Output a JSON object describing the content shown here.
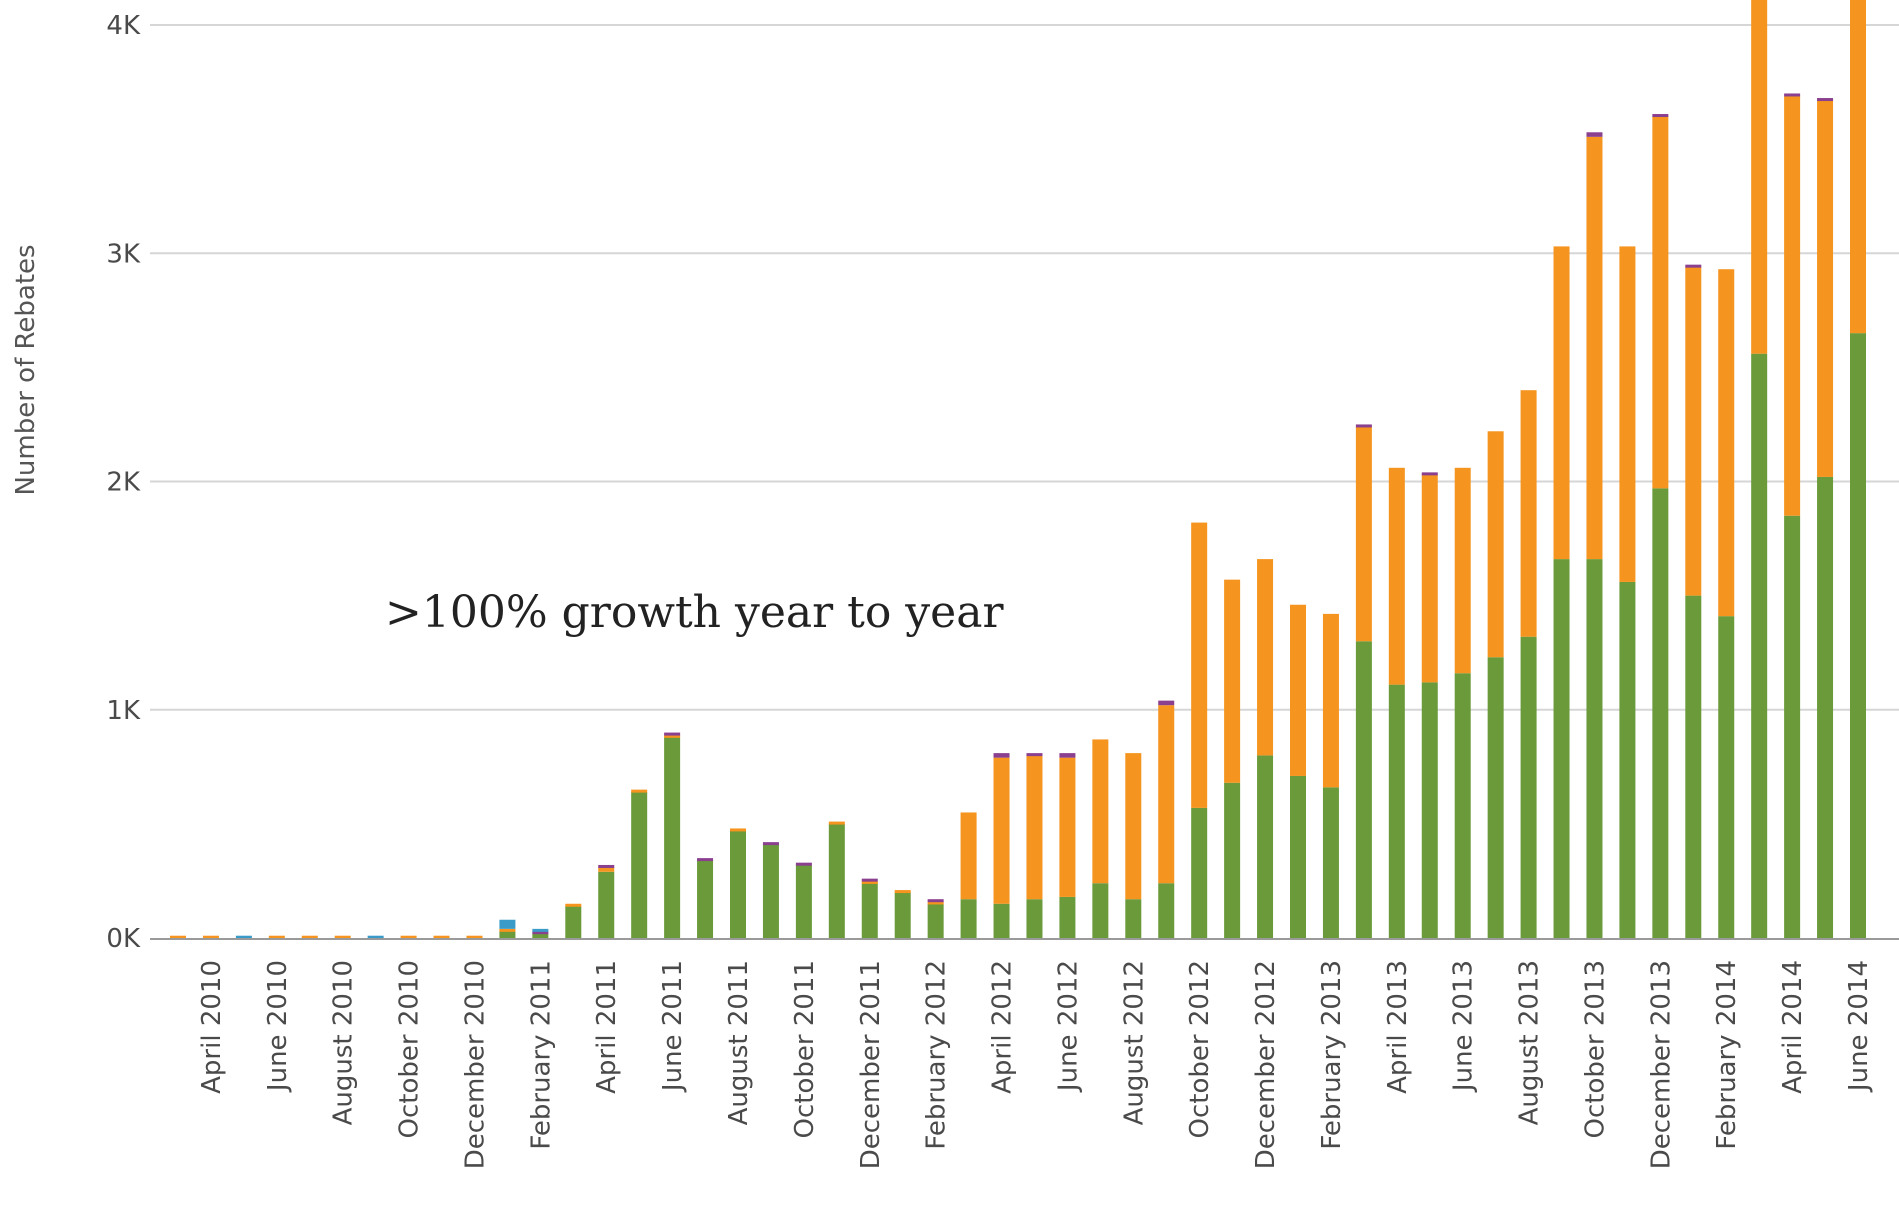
{
  "chart_data": {
    "type": "bar",
    "stacked": true,
    "ylabel": "Number of Rebates",
    "xlabel": "",
    "ylim": [
      0,
      4150
    ],
    "y_ticks": [
      {
        "value": 0,
        "label": "0K"
      },
      {
        "value": 1000,
        "label": "1K"
      },
      {
        "value": 2000,
        "label": "2K"
      },
      {
        "value": 3000,
        "label": "3K"
      },
      {
        "value": 4000,
        "label": "4K"
      }
    ],
    "grid": true,
    "annotation": ">100% growth year to year",
    "categories": [
      "March 2010",
      "April 2010",
      "May 2010",
      "June 2010",
      "July 2010",
      "August 2010",
      "September 2010",
      "October 2010",
      "November 2010",
      "December 2010",
      "January 2011",
      "February 2011",
      "March 2011",
      "April 2011",
      "May 2011",
      "June 2011",
      "July 2011",
      "August 2011",
      "September 2011",
      "October 2011",
      "November 2011",
      "December 2011",
      "January 2012",
      "February 2012",
      "March 2012",
      "April 2012",
      "May 2012",
      "June 2012",
      "July 2012",
      "August 2012",
      "September 2012",
      "October 2012",
      "November 2012",
      "December 2012",
      "January 2013",
      "February 2013",
      "March 2013",
      "April 2013",
      "May 2013",
      "June 2013",
      "July 2013",
      "August 2013",
      "September 2013",
      "October 2013",
      "November 2013",
      "December 2013",
      "January 2014",
      "February 2014",
      "March 2014",
      "April 2014",
      "May 2014",
      "June 2014"
    ],
    "tick_labels": [
      {
        "index": 1,
        "label": "April 2010"
      },
      {
        "index": 3,
        "label": "June 2010"
      },
      {
        "index": 5,
        "label": "August 2010"
      },
      {
        "index": 7,
        "label": "October 2010"
      },
      {
        "index": 9,
        "label": "December 2010"
      },
      {
        "index": 11,
        "label": "February 2011"
      },
      {
        "index": 13,
        "label": "April 2011"
      },
      {
        "index": 15,
        "label": "June 2011"
      },
      {
        "index": 17,
        "label": "August 2011"
      },
      {
        "index": 19,
        "label": "October 2011"
      },
      {
        "index": 21,
        "label": "December 2011"
      },
      {
        "index": 23,
        "label": "February 2012"
      },
      {
        "index": 25,
        "label": "April 2012"
      },
      {
        "index": 27,
        "label": "June 2012"
      },
      {
        "index": 29,
        "label": "August 2012"
      },
      {
        "index": 31,
        "label": "October 2012"
      },
      {
        "index": 33,
        "label": "December 2012"
      },
      {
        "index": 35,
        "label": "February 2013"
      },
      {
        "index": 37,
        "label": "April 2013"
      },
      {
        "index": 39,
        "label": "June 2013"
      },
      {
        "index": 41,
        "label": "August 2013"
      },
      {
        "index": 43,
        "label": "October 2013"
      },
      {
        "index": 45,
        "label": "December 2013"
      },
      {
        "index": 47,
        "label": "February 2014"
      },
      {
        "index": 49,
        "label": "April 2014"
      },
      {
        "index": 51,
        "label": "June 2014"
      }
    ],
    "series": [
      {
        "color": "#6a9a3a",
        "values": [
          0,
          0,
          0,
          0,
          0,
          0,
          0,
          0,
          0,
          0,
          30,
          20,
          140,
          290,
          640,
          880,
          340,
          470,
          410,
          320,
          500,
          240,
          200,
          150,
          170,
          150,
          170,
          180,
          240,
          170,
          240,
          570,
          680,
          800,
          710,
          660,
          1300,
          1110,
          1120,
          1160,
          1230,
          1320,
          1660,
          1660,
          1560,
          1970,
          1500,
          1410,
          2560,
          1850,
          2020,
          2650
        ]
      },
      {
        "color": "#f5941e",
        "values": [
          10,
          10,
          0,
          10,
          10,
          10,
          0,
          10,
          10,
          10,
          10,
          0,
          10,
          20,
          10,
          10,
          0,
          10,
          0,
          0,
          10,
          10,
          10,
          10,
          380,
          640,
          630,
          610,
          630,
          640,
          780,
          1250,
          890,
          860,
          750,
          760,
          940,
          950,
          910,
          900,
          990,
          1080,
          1370,
          1850,
          1470,
          1630,
          1440,
          1520,
          1640,
          1840,
          1650,
          1530
        ]
      },
      {
        "color": "#8a3f8f",
        "values": [
          0,
          0,
          0,
          0,
          0,
          0,
          0,
          0,
          0,
          0,
          0,
          10,
          0,
          10,
          0,
          10,
          10,
          0,
          10,
          10,
          0,
          10,
          0,
          10,
          0,
          20,
          10,
          20,
          0,
          0,
          20,
          0,
          0,
          0,
          0,
          0,
          10,
          0,
          10,
          0,
          0,
          0,
          0,
          20,
          0,
          10,
          10,
          0,
          0,
          10,
          10,
          0
        ]
      },
      {
        "color": "#3a9bc9",
        "values": [
          0,
          0,
          10,
          0,
          0,
          0,
          10,
          0,
          0,
          0,
          40,
          10,
          0,
          0,
          0,
          0,
          0,
          0,
          0,
          0,
          0,
          0,
          0,
          0,
          0,
          0,
          0,
          0,
          0,
          0,
          0,
          0,
          0,
          0,
          0,
          0,
          0,
          0,
          0,
          0,
          0,
          0,
          0,
          0,
          0,
          0,
          0,
          0,
          0,
          0,
          0,
          0
        ]
      }
    ]
  }
}
